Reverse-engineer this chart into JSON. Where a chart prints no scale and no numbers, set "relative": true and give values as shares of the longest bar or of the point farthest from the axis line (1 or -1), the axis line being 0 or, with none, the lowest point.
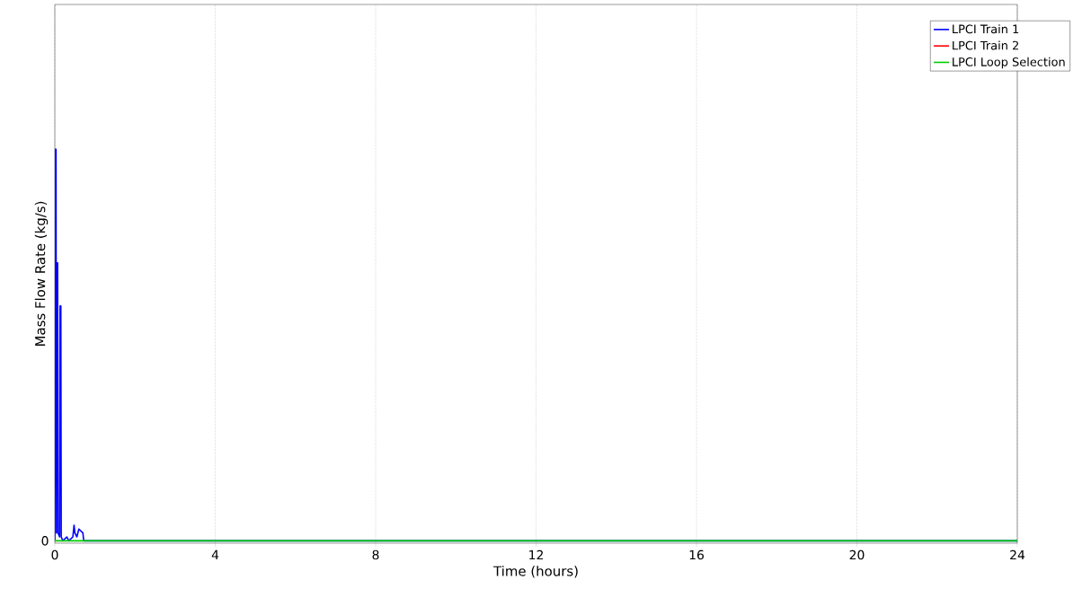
{
  "chart_data": {
    "type": "line",
    "xlabel": "Time (hours)",
    "ylabel": "Mass Flow Rate (kg/s)",
    "relative": true,
    "xlim": [
      0,
      24
    ],
    "xticks": [
      0,
      4,
      8,
      12,
      16,
      20,
      24
    ],
    "grid": "x",
    "legend": "top right",
    "annotations": [
      "0"
    ],
    "series": [
      {
        "name": "LPCI Train 1",
        "color": "#0000ff",
        "x": [
          0,
          0.01,
          0.03,
          0.04,
          0.05,
          0.07,
          0.08,
          0.12,
          0.13,
          0.15,
          0.16,
          0.2,
          0.3,
          0.35,
          0.45,
          0.48,
          0.5,
          0.55,
          0.6,
          0.7,
          0.72,
          24
        ],
        "values": [
          0,
          1,
          1,
          0.02,
          0.71,
          0.71,
          0.02,
          0.01,
          0.6,
          0.6,
          0.01,
          0,
          0.01,
          0,
          0.01,
          0.04,
          0.02,
          0.01,
          0.03,
          0.02,
          0,
          0
        ]
      },
      {
        "name": "LPCI Train 2",
        "color": "#ff0000"
      },
      {
        "name": "LPCI Loop Selection",
        "color": "#00cc00",
        "x": [
          0,
          24
        ],
        "values": [
          0,
          0
        ]
      }
    ]
  }
}
